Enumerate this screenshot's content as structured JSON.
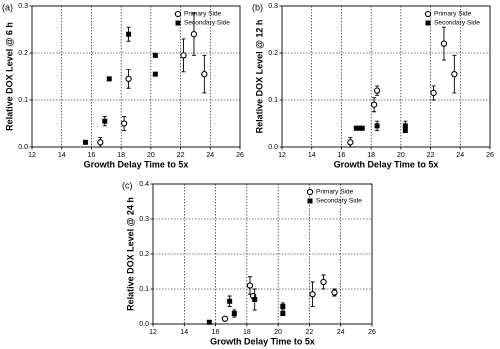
{
  "chart_data": [
    {
      "type": "scatter",
      "panel_label": "(a)",
      "x_label": "Growth Delay Time to 5x",
      "y_label": "Relative DOX Level @ 6 h",
      "xlim": [
        12,
        26
      ],
      "xticks": [
        12,
        14,
        16,
        18,
        20,
        22,
        24,
        26
      ],
      "ylim": [
        0,
        0.3
      ],
      "yticks": [
        {
          "value": 0,
          "label": "0.0"
        },
        0.1,
        0.2,
        0.3
      ],
      "grid": true,
      "legend": "top-right",
      "series": [
        {
          "name": "Primary Side",
          "color": "#000000",
          "marker": "circle-open",
          "x": [
            16.6,
            18.2,
            18.5,
            22.2,
            22.9,
            23.6
          ],
          "values": [
            0.01,
            0.05,
            0.145,
            0.195,
            0.24,
            0.155
          ],
          "errors": [
            0.01,
            0.015,
            0.02,
            0.035,
            0.045,
            0.04
          ]
        },
        {
          "name": "Secondary Side",
          "color": "#000000",
          "marker": "square-filled",
          "x": [
            15.6,
            16.9,
            17.2,
            18.5,
            20.3,
            20.3
          ],
          "values": [
            0.01,
            0.055,
            0.145,
            0.24,
            0.195,
            0.155
          ],
          "errors": [
            null,
            0.01,
            null,
            0.015,
            null,
            null
          ]
        }
      ]
    },
    {
      "type": "scatter",
      "panel_label": "(b)",
      "x_label": "Growth Delay Time to 5x",
      "y_label": "Relative DOX Level @ 12 h",
      "xlim": [
        12,
        26
      ],
      "xticks": [
        12,
        14,
        16,
        18,
        20,
        22,
        24,
        26
      ],
      "ylim": [
        0,
        0.3
      ],
      "yticks": [
        {
          "value": 0,
          "label": "0.0"
        },
        0.1,
        0.2,
        0.3
      ],
      "grid": true,
      "legend": "top-right",
      "series": [
        {
          "name": "Primary Side",
          "color": "#000000",
          "marker": "circle-open",
          "x": [
            16.6,
            18.2,
            18.4,
            22.2,
            22.9,
            23.6
          ],
          "values": [
            0.01,
            0.09,
            0.12,
            0.115,
            0.22,
            0.155
          ],
          "errors": [
            0.01,
            0.015,
            0.01,
            0.015,
            0.035,
            0.04
          ]
        },
        {
          "name": "Secondary Side",
          "color": "#000000",
          "marker": "square-filled",
          "x": [
            17.0,
            17.2,
            17.4,
            18.4,
            20.3,
            20.3
          ],
          "values": [
            0.04,
            0.04,
            0.04,
            0.045,
            0.045,
            0.035
          ],
          "errors": [
            null,
            null,
            null,
            0.01,
            0.01,
            null
          ]
        }
      ]
    },
    {
      "type": "scatter",
      "panel_label": "(c)",
      "x_label": "Growth Delay Time to 5x",
      "y_label": "Relative DOX Level @ 24 h",
      "xlim": [
        12,
        26
      ],
      "xticks": [
        12,
        14,
        16,
        18,
        20,
        22,
        24,
        26
      ],
      "ylim": [
        0,
        0.4
      ],
      "yticks": [
        {
          "value": 0,
          "label": "0.0"
        },
        0.1,
        0.2,
        0.3,
        0.4
      ],
      "grid": true,
      "legend": "top-right",
      "series": [
        {
          "name": "Primary Side",
          "color": "#000000",
          "marker": "circle-open",
          "x": [
            16.6,
            18.2,
            18.4,
            22.2,
            22.9,
            23.6
          ],
          "values": [
            0.015,
            0.11,
            0.08,
            0.085,
            0.12,
            0.09
          ],
          "errors": [
            null,
            0.025,
            null,
            0.035,
            0.02,
            0.01
          ]
        },
        {
          "name": "Secondary Side",
          "color": "#000000",
          "marker": "square-filled",
          "x": [
            15.6,
            16.9,
            17.2,
            18.5,
            20.3,
            20.3
          ],
          "values": [
            0.005,
            0.065,
            0.03,
            0.07,
            0.05,
            0.03
          ],
          "errors": [
            null,
            0.015,
            0.01,
            0.03,
            0.01,
            null
          ]
        }
      ]
    }
  ]
}
